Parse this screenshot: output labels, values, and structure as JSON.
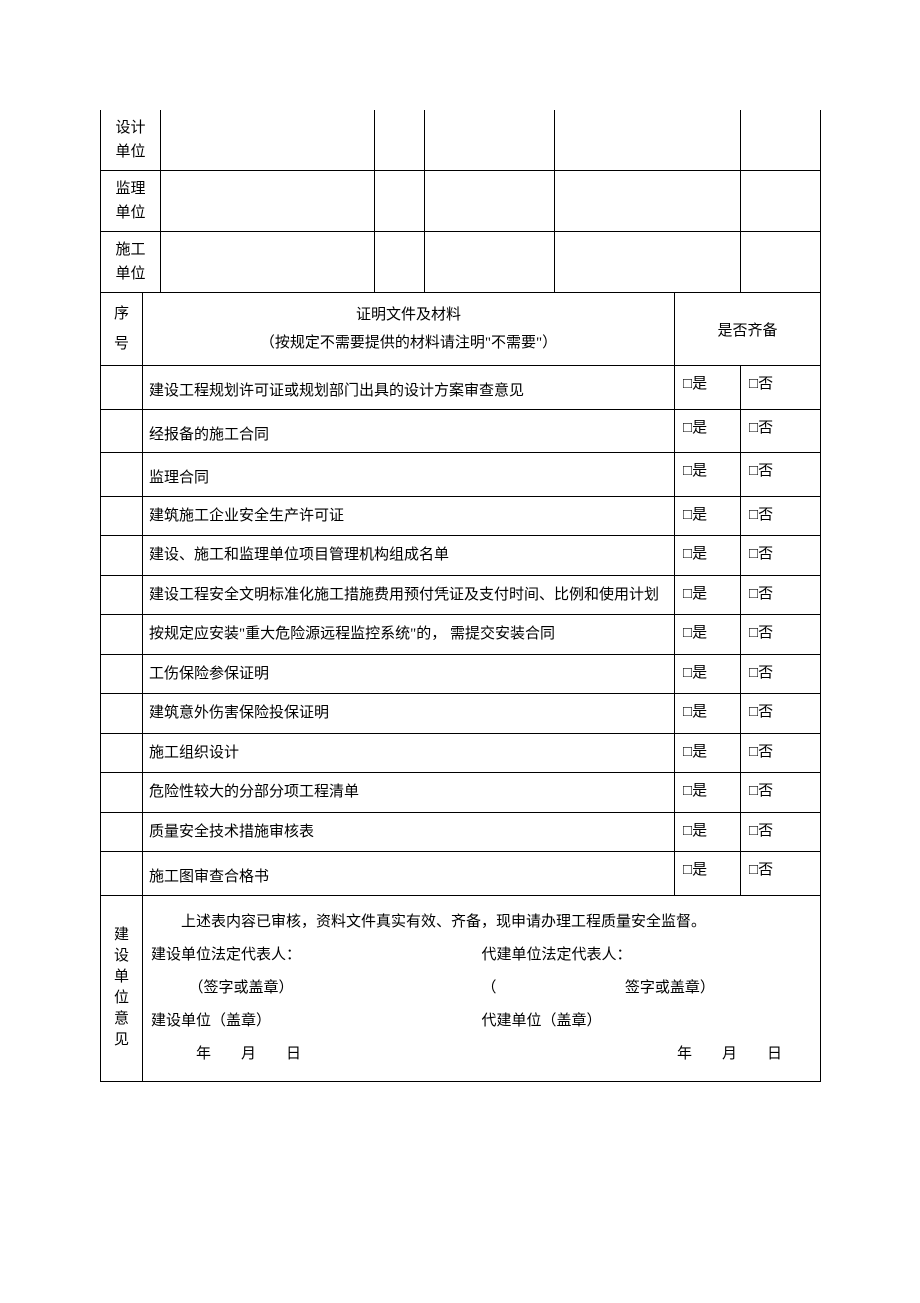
{
  "top_rows": [
    {
      "label": "设计\n单位"
    },
    {
      "label": "监理\n单位"
    },
    {
      "label": "施工\n单位"
    }
  ],
  "col_widths": {
    "c1": 42,
    "c2": 18,
    "c3": 214,
    "c4": 50,
    "c5": 130,
    "c6": 120,
    "c7": 66,
    "c8": 80
  },
  "header": {
    "seq": "序号",
    "doc_title": "证明文件及材料",
    "doc_sub": "（按规定不需要提供的材料请注明\"不需要\"）",
    "avail": "是否齐备"
  },
  "checkbox_glyph": "□",
  "yes_label": "是",
  "no_label": "否",
  "docs": [
    {
      "text": "建设工程规划许可证或规划部门出具的设计方案审查意见",
      "tall": true
    },
    {
      "text": "经报备的施工合同",
      "tall": true
    },
    {
      "text": "监理合同",
      "tall": true
    },
    {
      "text": "建筑施工企业安全生产许可证",
      "tall": false
    },
    {
      "text": "建设、施工和监理单位项目管理机构组成名单",
      "tall": false
    },
    {
      "text": "建设工程安全文明标准化施工措施费用预付凭证及支付时间、比例和使用计划",
      "tall": false
    },
    {
      "text": "按规定应安装\"重大危险源远程监控系统\"的， 需提交安装合同",
      "tall": false
    },
    {
      "text": "工伤保险参保证明",
      "tall": false
    },
    {
      "text": "建筑意外伤害保险投保证明",
      "tall": false
    },
    {
      "text": "施工组织设计",
      "tall": false
    },
    {
      "text": "危险性较大的分部分项工程清单",
      "tall": false
    },
    {
      "text": "质量安全技术措施审核表",
      "tall": false
    },
    {
      "text": "施工图审查合格书",
      "tall": true
    }
  ],
  "opinion": {
    "vlabel": "建设单位意见",
    "line1": "上述表内容已审核，资料文件真实有效、齐备，现申请办理工程质量安全监督。",
    "left_rep": "建设单位法定代表人：",
    "right_rep": "代建单位法定代表人：",
    "sign_left_open": "（签字或盖章）",
    "sign_paren_open": "（",
    "sign_right": "签字或盖章）",
    "left_stamp": "建设单位（盖章）",
    "right_stamp": "代建单位（盖章）",
    "date": "年　　月　　日"
  }
}
